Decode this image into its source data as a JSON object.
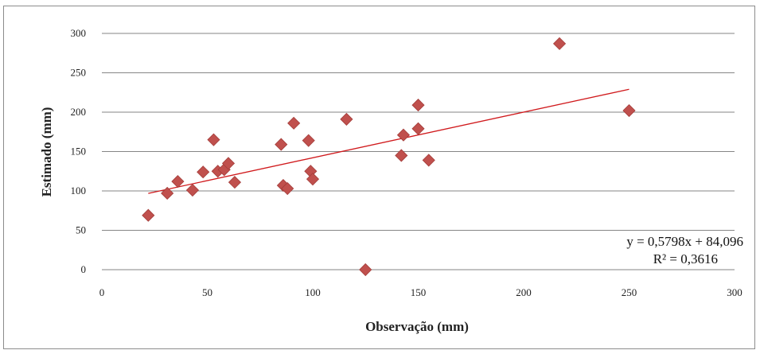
{
  "chart_data": {
    "type": "scatter",
    "title": "",
    "xlabel": "Observação (mm)",
    "ylabel": "Estimado (mm)",
    "xlim": [
      0,
      300
    ],
    "ylim": [
      0,
      300
    ],
    "x_ticks": [
      "0",
      "50",
      "100",
      "150",
      "200",
      "250",
      "300"
    ],
    "y_ticks": [
      "0",
      "50",
      "100",
      "150",
      "200",
      "250",
      "300"
    ],
    "grid": "horizontal",
    "marker_color": "#c0504d",
    "trendline_color": "#d0191c",
    "points": [
      {
        "x": 22,
        "y": 69
      },
      {
        "x": 31,
        "y": 97
      },
      {
        "x": 36,
        "y": 112
      },
      {
        "x": 43,
        "y": 101
      },
      {
        "x": 48,
        "y": 124
      },
      {
        "x": 53,
        "y": 165
      },
      {
        "x": 55,
        "y": 125
      },
      {
        "x": 58,
        "y": 127
      },
      {
        "x": 60,
        "y": 135
      },
      {
        "x": 63,
        "y": 111
      },
      {
        "x": 85,
        "y": 159
      },
      {
        "x": 86,
        "y": 107
      },
      {
        "x": 88,
        "y": 103
      },
      {
        "x": 91,
        "y": 186
      },
      {
        "x": 98,
        "y": 164
      },
      {
        "x": 99,
        "y": 125
      },
      {
        "x": 100,
        "y": 115
      },
      {
        "x": 116,
        "y": 191
      },
      {
        "x": 125,
        "y": 0
      },
      {
        "x": 142,
        "y": 145
      },
      {
        "x": 143,
        "y": 171
      },
      {
        "x": 150,
        "y": 179
      },
      {
        "x": 150,
        "y": 209
      },
      {
        "x": 155,
        "y": 139
      },
      {
        "x": 217,
        "y": 287
      },
      {
        "x": 250,
        "y": 202
      }
    ],
    "trendline": {
      "slope": 0.5798,
      "intercept": 84.096,
      "x_range": [
        22,
        250
      ],
      "equation": "y = 0,5798x + 84,096",
      "r_squared": "R² = 0,3616"
    }
  }
}
